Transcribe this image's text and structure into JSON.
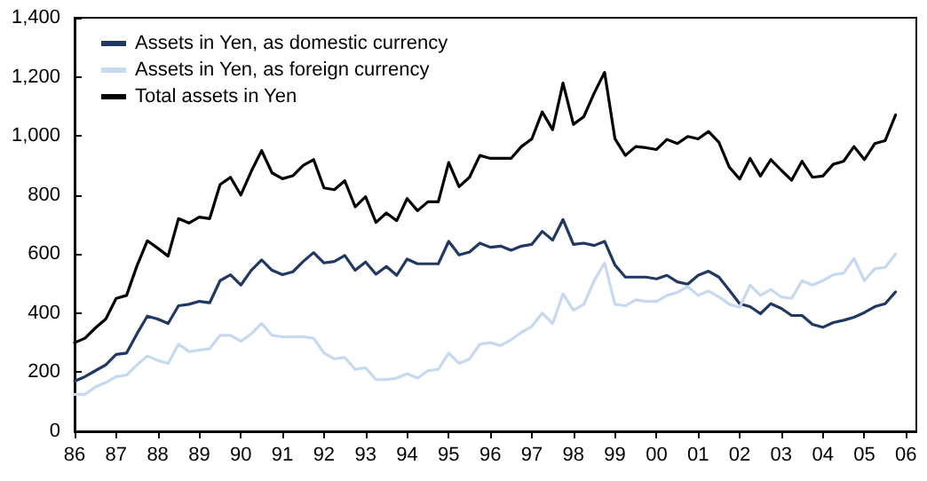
{
  "chart_data": {
    "type": "line",
    "x": [
      1986,
      1986.25,
      1986.5,
      1986.75,
      1987,
      1987.25,
      1987.5,
      1987.75,
      1988,
      1988.25,
      1988.5,
      1988.75,
      1989,
      1989.25,
      1989.5,
      1989.75,
      1990,
      1990.25,
      1990.5,
      1990.75,
      1991,
      1991.25,
      1991.5,
      1991.75,
      1992,
      1992.25,
      1992.5,
      1992.75,
      1993,
      1993.25,
      1993.5,
      1993.75,
      1994,
      1994.25,
      1994.5,
      1994.75,
      1995,
      1995.25,
      1995.5,
      1995.75,
      1996,
      1996.25,
      1996.5,
      1996.75,
      1997,
      1997.25,
      1997.5,
      1997.75,
      1998,
      1998.25,
      1998.5,
      1998.75,
      1999,
      1999.25,
      1999.5,
      1999.75,
      2000,
      2000.25,
      2000.5,
      2000.75,
      2001,
      2001.25,
      2001.5,
      2001.75,
      2002,
      2002.25,
      2002.5,
      2002.75,
      2003,
      2003.25,
      2003.5,
      2003.75,
      2004,
      2004.25,
      2004.5,
      2004.75,
      2005,
      2005.25,
      2005.5,
      2005.75
    ],
    "series": [
      {
        "name": "Assets in Yen, as domestic currency",
        "color": "#1f3864",
        "values": [
          170,
          185,
          205,
          225,
          260,
          265,
          330,
          390,
          380,
          365,
          425,
          430,
          440,
          435,
          510,
          530,
          495,
          545,
          580,
          545,
          530,
          540,
          575,
          605,
          570,
          575,
          595,
          545,
          573,
          532,
          558,
          528,
          583,
          567,
          567,
          567,
          643,
          597,
          607,
          637,
          623,
          627,
          613,
          627,
          633,
          677,
          647,
          717,
          633,
          637,
          629,
          643,
          563,
          522,
          522,
          522,
          516,
          528,
          506,
          498,
          528,
          542,
          522,
          478,
          432,
          422,
          398,
          432,
          416,
          392,
          392,
          362,
          352,
          368,
          376,
          386,
          402,
          422,
          432,
          472
        ]
      },
      {
        "name": "Assets in Yen, as foreign currency",
        "color": "#c5d9f1",
        "values": [
          125,
          125,
          150,
          165,
          185,
          190,
          225,
          255,
          240,
          230,
          295,
          270,
          275,
          280,
          325,
          325,
          305,
          330,
          365,
          325,
          320,
          320,
          320,
          315,
          265,
          245,
          250,
          210,
          215,
          175,
          175,
          180,
          195,
          180,
          205,
          210,
          265,
          230,
          245,
          295,
          300,
          290,
          310,
          335,
          355,
          400,
          365,
          465,
          410,
          430,
          510,
          570,
          430,
          425,
          445,
          440,
          440,
          460,
          470,
          490,
          460,
          475,
          455,
          430,
          420,
          495,
          460,
          480,
          455,
          450,
          510,
          495,
          510,
          530,
          535,
          585,
          510,
          550,
          555,
          600
        ]
      },
      {
        "name": "Total assets in Yen",
        "color": "#000000",
        "values": [
          300,
          315,
          350,
          380,
          450,
          460,
          560,
          645,
          620,
          593,
          720,
          705,
          725,
          720,
          835,
          860,
          800,
          880,
          950,
          875,
          855,
          865,
          900,
          920,
          824,
          818,
          848,
          760,
          794,
          707,
          739,
          713,
          788,
          747,
          777,
          777,
          910,
          828,
          860,
          934,
          924,
          924,
          924,
          964,
          990,
          1081,
          1021,
          1179,
          1039,
          1065,
          1145,
          1215,
          990,
          934,
          964,
          960,
          954,
          988,
          974,
          998,
          990,
          1015,
          978,
          894,
          854,
          924,
          864,
          920,
          884,
          850,
          914,
          860,
          864,
          904,
          914,
          964,
          920,
          974,
          984,
          1071
        ]
      }
    ],
    "xlim": [
      1986,
      2006.25
    ],
    "xticks": [
      {
        "value": 1986,
        "label": "86"
      },
      {
        "value": 1987,
        "label": "87"
      },
      {
        "value": 1988,
        "label": "88"
      },
      {
        "value": 1989,
        "label": "89"
      },
      {
        "value": 1990,
        "label": "90"
      },
      {
        "value": 1991,
        "label": "91"
      },
      {
        "value": 1992,
        "label": "92"
      },
      {
        "value": 1993,
        "label": "93"
      },
      {
        "value": 1994,
        "label": "94"
      },
      {
        "value": 1995,
        "label": "95"
      },
      {
        "value": 1996,
        "label": "96"
      },
      {
        "value": 1997,
        "label": "97"
      },
      {
        "value": 1998,
        "label": "98"
      },
      {
        "value": 1999,
        "label": "99"
      },
      {
        "value": 2000,
        "label": "00"
      },
      {
        "value": 2001,
        "label": "01"
      },
      {
        "value": 2002,
        "label": "02"
      },
      {
        "value": 2003,
        "label": "03"
      },
      {
        "value": 2004,
        "label": "04"
      },
      {
        "value": 2005,
        "label": "05"
      },
      {
        "value": 2006,
        "label": "06"
      }
    ],
    "ylim": [
      0,
      1400
    ],
    "yticks": [
      0,
      200,
      400,
      600,
      800,
      {
        "value": 1000,
        "label": "1,000"
      },
      {
        "value": 1200,
        "label": "1,200"
      },
      {
        "value": 1400,
        "label": "1,400"
      }
    ],
    "legend": "top left",
    "grid": false,
    "marker": "none",
    "line_style": "solid"
  }
}
